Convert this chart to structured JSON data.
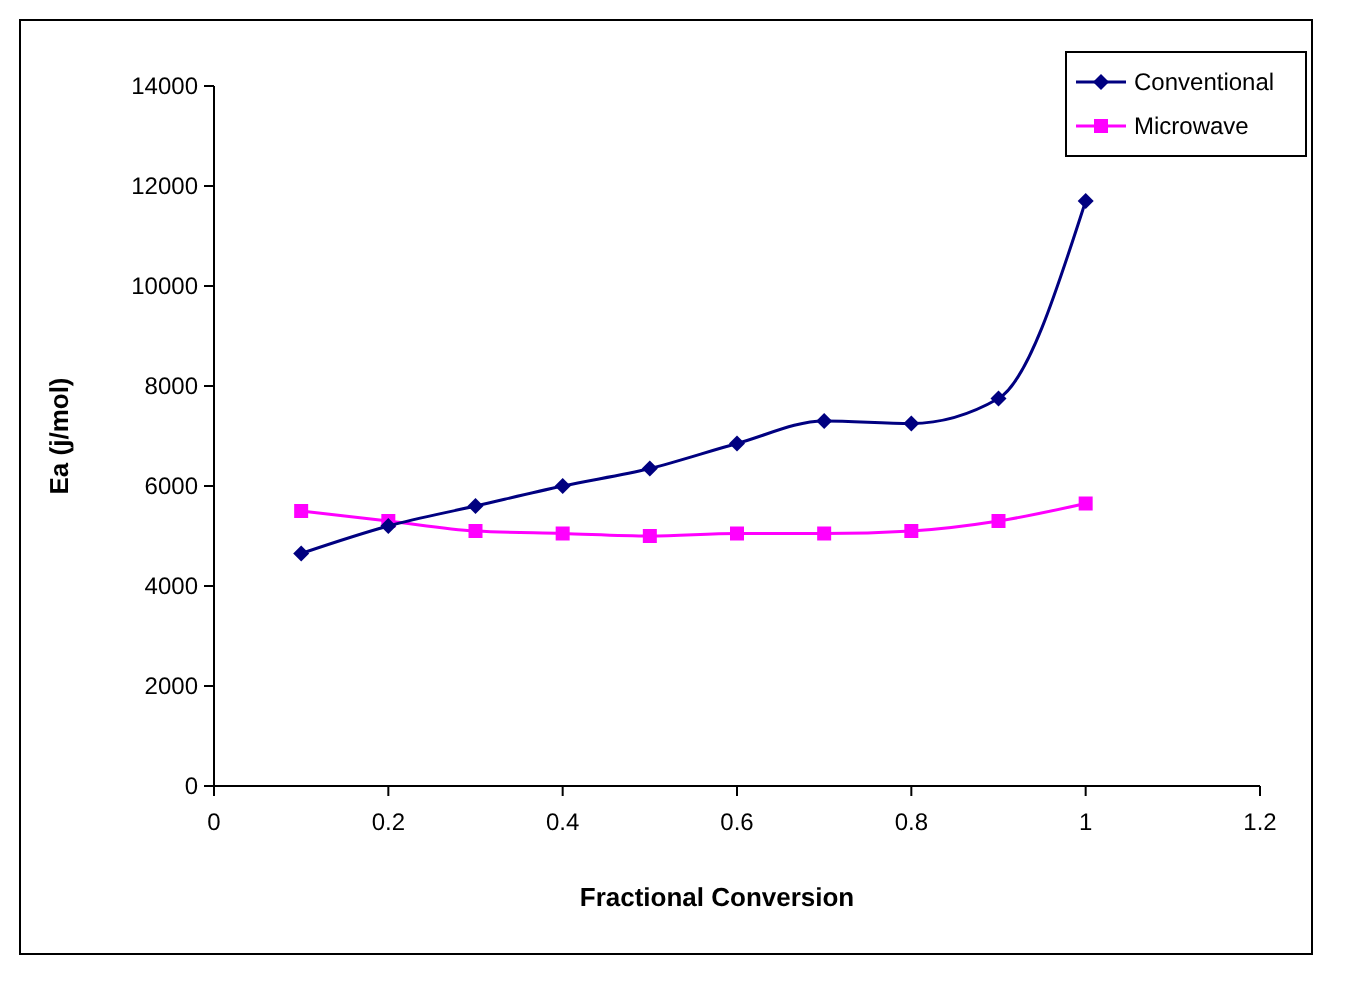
{
  "chart_data": {
    "type": "line",
    "xlabel": "Fractional Conversion",
    "ylabel": "Ea (j/mol)",
    "x": [
      0.1,
      0.2,
      0.3,
      0.4,
      0.5,
      0.6,
      0.7,
      0.8,
      0.9,
      1.0
    ],
    "xlim": [
      0,
      1.2
    ],
    "xticks": [
      0,
      0.2,
      0.4,
      0.6,
      0.8,
      1,
      1.2
    ],
    "ylim": [
      0,
      14000
    ],
    "yticks": [
      0,
      2000,
      4000,
      6000,
      8000,
      10000,
      12000,
      14000
    ],
    "grid": false,
    "legend": "top right",
    "series": [
      {
        "name": "Conventional",
        "color": "#000080",
        "marker": "diamond",
        "values": [
          4650,
          5200,
          5600,
          6000,
          6350,
          6850,
          7300,
          7250,
          7750,
          11700
        ]
      },
      {
        "name": "Microwave",
        "color": "#ff00ff",
        "marker": "square",
        "values": [
          5500,
          5300,
          5100,
          5050,
          5000,
          5050,
          5050,
          5100,
          5300,
          5650
        ]
      }
    ]
  }
}
